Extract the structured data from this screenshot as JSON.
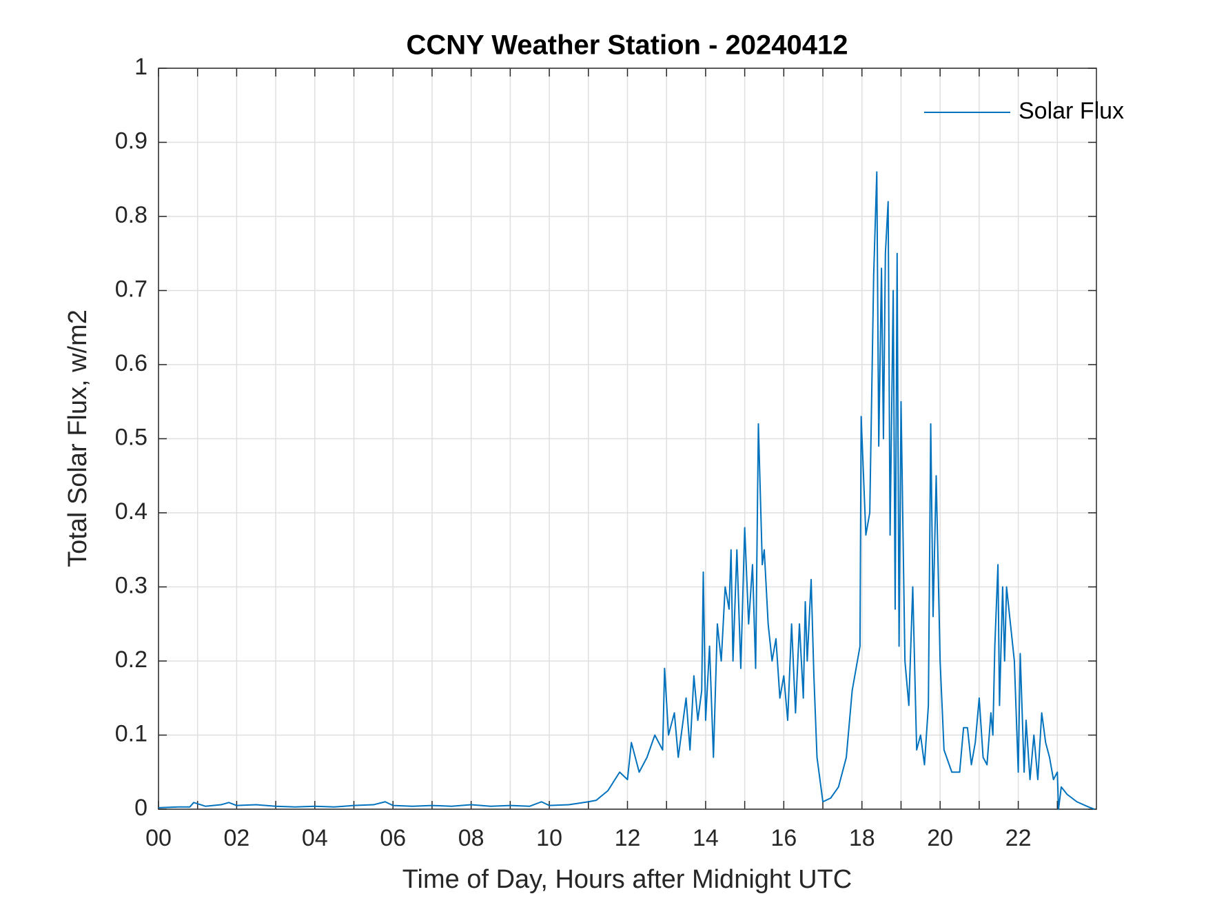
{
  "chart_data": {
    "type": "line",
    "title": "CCNY Weather Station - 20240412",
    "xlabel": "Time of Day, Hours after Midnight UTC",
    "ylabel": "Total Solar Flux, w/m2",
    "xlim": [
      0,
      24
    ],
    "xticks": [
      {
        "value": 0,
        "label": "00"
      },
      {
        "value": 2,
        "label": "02"
      },
      {
        "value": 4,
        "label": "04"
      },
      {
        "value": 6,
        "label": "06"
      },
      {
        "value": 8,
        "label": "08"
      },
      {
        "value": 10,
        "label": "10"
      },
      12,
      14,
      16,
      18,
      20,
      22
    ],
    "xminorticks": [
      1,
      3,
      5,
      7,
      9,
      11,
      13,
      15,
      17,
      19,
      21,
      23
    ],
    "ylim": [
      0,
      1
    ],
    "yticks": [
      0,
      0.1,
      0.2,
      0.3,
      0.4,
      0.5,
      0.6,
      0.7,
      0.8,
      0.9,
      1
    ],
    "grid": true,
    "legend": "upper right",
    "series": [
      {
        "name": "Solar Flux",
        "color": "#0072bd",
        "x": [
          0,
          0.5,
          0.8,
          0.9,
          1.2,
          1.6,
          1.8,
          2.0,
          2.5,
          3.0,
          3.5,
          4.0,
          4.5,
          5.0,
          5.5,
          5.8,
          6.0,
          6.5,
          7.0,
          7.5,
          8.0,
          8.5,
          9.0,
          9.5,
          9.8,
          10.0,
          10.5,
          11.0,
          11.2,
          11.5,
          11.8,
          12.0,
          12.1,
          12.3,
          12.5,
          12.7,
          12.9,
          12.95,
          13.05,
          13.2,
          13.3,
          13.5,
          13.6,
          13.7,
          13.8,
          13.9,
          13.94,
          14.0,
          14.1,
          14.2,
          14.3,
          14.4,
          14.5,
          14.6,
          14.65,
          14.7,
          14.8,
          14.9,
          15.0,
          15.1,
          15.2,
          15.28,
          15.35,
          15.45,
          15.5,
          15.6,
          15.7,
          15.8,
          15.9,
          16.0,
          16.1,
          16.2,
          16.3,
          16.4,
          16.5,
          16.55,
          16.6,
          16.7,
          16.77,
          16.85,
          17.0,
          17.2,
          17.4,
          17.6,
          17.75,
          17.85,
          17.95,
          17.98,
          18.1,
          18.2,
          18.3,
          18.38,
          18.43,
          18.5,
          18.55,
          18.6,
          18.67,
          18.72,
          18.8,
          18.85,
          18.9,
          18.95,
          19.0,
          19.1,
          19.2,
          19.3,
          19.4,
          19.5,
          19.6,
          19.7,
          19.76,
          19.82,
          19.9,
          20.0,
          20.1,
          20.3,
          20.5,
          20.6,
          20.7,
          20.8,
          20.9,
          21.0,
          21.1,
          21.2,
          21.3,
          21.35,
          21.4,
          21.48,
          21.52,
          21.6,
          21.65,
          21.7,
          21.8,
          21.9,
          22.0,
          22.05,
          22.15,
          22.2,
          22.3,
          22.4,
          22.5,
          22.6,
          22.7,
          22.8,
          22.9,
          23.0,
          23.03,
          23.1,
          23.25,
          23.5,
          23.8,
          23.95
        ],
        "values": [
          0.002,
          0.003,
          0.003,
          0.009,
          0.004,
          0.006,
          0.009,
          0.005,
          0.006,
          0.004,
          0.003,
          0.004,
          0.003,
          0.005,
          0.006,
          0.01,
          0.005,
          0.004,
          0.005,
          0.004,
          0.006,
          0.004,
          0.005,
          0.004,
          0.01,
          0.005,
          0.006,
          0.01,
          0.012,
          0.025,
          0.05,
          0.04,
          0.09,
          0.05,
          0.07,
          0.1,
          0.08,
          0.19,
          0.1,
          0.13,
          0.07,
          0.15,
          0.08,
          0.18,
          0.12,
          0.16,
          0.32,
          0.12,
          0.22,
          0.07,
          0.25,
          0.2,
          0.3,
          0.27,
          0.35,
          0.2,
          0.35,
          0.19,
          0.38,
          0.25,
          0.33,
          0.19,
          0.52,
          0.33,
          0.35,
          0.25,
          0.2,
          0.23,
          0.15,
          0.18,
          0.12,
          0.25,
          0.13,
          0.25,
          0.15,
          0.28,
          0.2,
          0.31,
          0.18,
          0.07,
          0.01,
          0.015,
          0.03,
          0.07,
          0.16,
          0.19,
          0.22,
          0.53,
          0.37,
          0.4,
          0.72,
          0.86,
          0.49,
          0.73,
          0.5,
          0.75,
          0.82,
          0.37,
          0.7,
          0.27,
          0.75,
          0.22,
          0.55,
          0.2,
          0.14,
          0.3,
          0.08,
          0.1,
          0.06,
          0.14,
          0.52,
          0.26,
          0.45,
          0.2,
          0.08,
          0.05,
          0.05,
          0.11,
          0.11,
          0.06,
          0.09,
          0.15,
          0.07,
          0.06,
          0.13,
          0.1,
          0.22,
          0.33,
          0.14,
          0.3,
          0.2,
          0.3,
          0.25,
          0.2,
          0.05,
          0.21,
          0.05,
          0.12,
          0.04,
          0.1,
          0.04,
          0.13,
          0.09,
          0.07,
          0.04,
          0.05,
          0.0,
          0.03,
          0.02,
          0.01,
          0.003,
          0.0
        ]
      }
    ]
  }
}
